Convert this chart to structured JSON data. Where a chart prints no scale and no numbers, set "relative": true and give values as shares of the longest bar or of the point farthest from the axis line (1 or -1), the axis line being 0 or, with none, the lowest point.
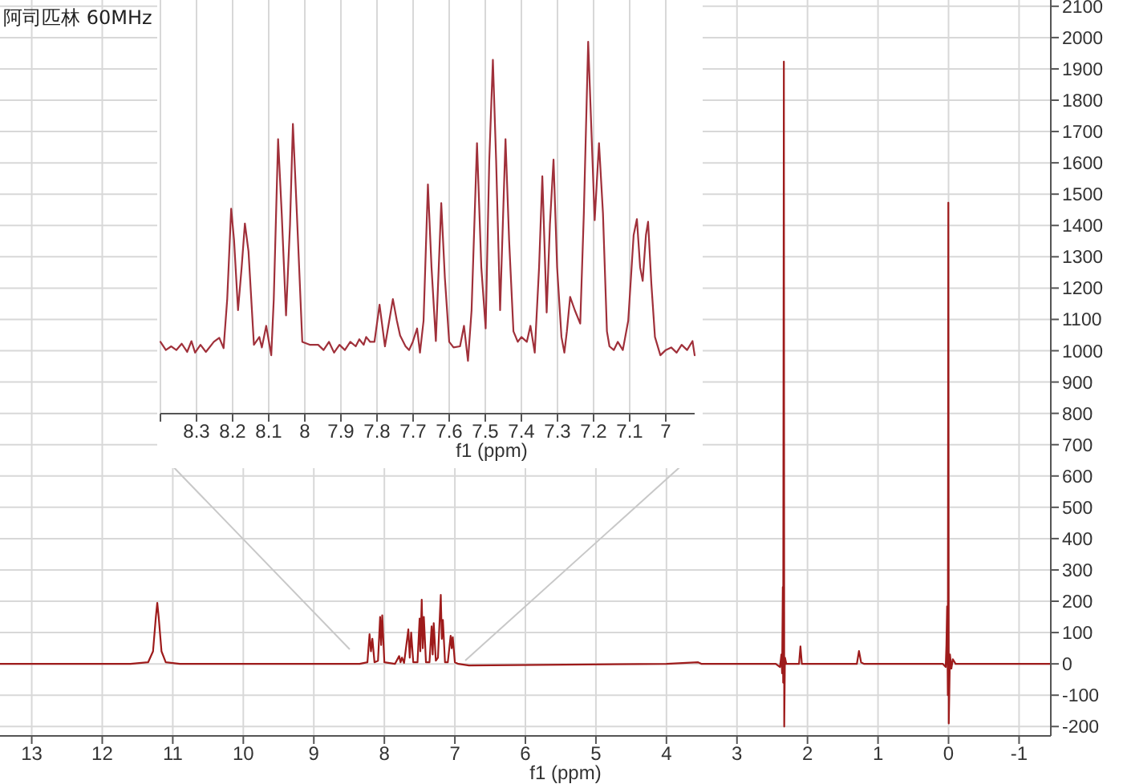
{
  "chart_data": [
    {
      "type": "line",
      "title": "阿司匹林 60MHz",
      "xlabel": "f1 (ppm)",
      "xlim": [
        13.45,
        -1.45
      ],
      "xticks": [
        13,
        12,
        11,
        10,
        9,
        8,
        7,
        6,
        5,
        4,
        3,
        2,
        1,
        0,
        -1
      ],
      "ylim": [
        -230,
        2120
      ],
      "yticks": [
        -200,
        -100,
        0,
        100,
        200,
        300,
        400,
        500,
        600,
        700,
        800,
        900,
        1000,
        1100,
        1200,
        1300,
        1400,
        1500,
        1600,
        1700,
        1800,
        1900,
        2000,
        2100
      ],
      "grid": true,
      "marker": "none",
      "line_style": "solid",
      "series": [
        {
          "color": "#9e1b1b",
          "x": [
            13.45,
            11.6,
            11.35,
            11.28,
            11.24,
            11.22,
            11.2,
            11.16,
            11.1,
            10.9,
            8.35,
            8.24,
            8.21,
            8.19,
            8.17,
            8.14,
            8.09,
            8.06,
            8.045,
            8.03,
            8.0,
            7.85,
            7.79,
            7.77,
            7.75,
            7.72,
            7.66,
            7.64,
            7.62,
            7.59,
            7.53,
            7.5,
            7.49,
            7.47,
            7.455,
            7.44,
            7.41,
            7.36,
            7.33,
            7.315,
            7.3,
            7.27,
            7.24,
            7.2,
            7.185,
            7.17,
            7.14,
            7.1,
            7.06,
            7.045,
            7.03,
            7.0,
            6.95,
            6.8,
            4,
            3.55,
            3.5,
            2.45,
            2.39,
            2.37,
            2.36,
            2.35,
            2.345,
            2.335,
            2.33,
            2.32,
            2.3,
            2.12,
            2.1,
            2.08,
            1.3,
            1.27,
            1.24,
            1.2,
            0.08,
            0.04,
            0.03,
            0.02,
            0.01,
            0.003,
            -0.003,
            -0.02,
            -0.04,
            -0.06,
            -0.1,
            -1.45
          ],
          "values": [
            0,
            0,
            5,
            40,
            150,
            195,
            150,
            40,
            5,
            0,
            0,
            5,
            95,
            40,
            80,
            5,
            10,
            150,
            60,
            155,
            5,
            0,
            25,
            5,
            20,
            3,
            110,
            20,
            100,
            5,
            5,
            145,
            40,
            205,
            50,
            150,
            5,
            5,
            120,
            30,
            130,
            10,
            20,
            220,
            80,
            140,
            5,
            5,
            90,
            50,
            85,
            5,
            0,
            -5,
            0,
            5,
            0,
            0,
            -10,
            30,
            -30,
            245,
            -60,
            1923,
            -200,
            20,
            0,
            0,
            56,
            0,
            0,
            41,
            5,
            0,
            0,
            -10,
            60,
            184,
            -100,
            1473,
            -190,
            30,
            -15,
            15,
            0,
            0
          ]
        }
      ]
    },
    {
      "type": "line",
      "xlabel": "f1 (ppm)",
      "xlim": [
        8.4,
        6.92
      ],
      "xticks": [
        {
          "value": 8.4,
          "label": null
        },
        8.3,
        8.2,
        8.1,
        8.0,
        7.9,
        7.8,
        7.7,
        7.6,
        7.5,
        7.4,
        7.3,
        7.2,
        7.1,
        7.0
      ],
      "relative": true,
      "grid": "x",
      "marker": "none",
      "line_style": "solid",
      "series": [
        {
          "color": "#a0303a",
          "x": [
            8.4,
            8.385,
            8.37,
            8.356,
            8.341,
            8.326,
            8.314,
            8.304,
            8.289,
            8.274,
            8.252,
            8.237,
            8.225,
            8.215,
            8.204,
            8.196,
            8.185,
            8.175,
            8.166,
            8.156,
            8.141,
            8.126,
            8.119,
            8.107,
            8.093,
            8.086,
            8.074,
            8.064,
            8.052,
            8.041,
            8.033,
            8.022,
            8.007,
            7.985,
            7.963,
            7.948,
            7.933,
            7.919,
            7.904,
            7.889,
            7.874,
            7.859,
            7.849,
            7.837,
            7.83,
            7.819,
            7.807,
            7.793,
            7.778,
            7.756,
            7.745,
            7.736,
            7.721,
            7.711,
            7.701,
            7.689,
            7.681,
            7.671,
            7.659,
            7.649,
            7.637,
            7.622,
            7.612,
            7.6,
            7.588,
            7.57,
            7.559,
            7.548,
            7.538,
            7.523,
            7.511,
            7.499,
            7.489,
            7.479,
            7.47,
            7.459,
            7.444,
            7.434,
            7.422,
            7.41,
            7.4,
            7.385,
            7.375,
            7.363,
            7.351,
            7.342,
            7.33,
            7.321,
            7.311,
            7.301,
            7.289,
            7.281,
            7.274,
            7.265,
            7.252,
            7.237,
            7.227,
            7.215,
            7.203,
            7.197,
            7.185,
            7.174,
            7.163,
            7.156,
            7.144,
            7.133,
            7.119,
            7.104,
            7.089,
            7.08,
            7.071,
            7.064,
            7.055,
            7.049,
            7.04,
            7.03,
            7.015,
            7.0,
            6.985,
            6.97,
            6.956,
            6.941,
            6.926,
            6.92
          ],
          "values": [
            0.193,
            0.171,
            0.181,
            0.171,
            0.188,
            0.166,
            0.195,
            0.164,
            0.185,
            0.166,
            0.193,
            0.204,
            0.176,
            0.308,
            0.551,
            0.466,
            0.278,
            0.393,
            0.511,
            0.436,
            0.185,
            0.206,
            0.178,
            0.236,
            0.157,
            0.308,
            0.738,
            0.538,
            0.264,
            0.508,
            0.779,
            0.538,
            0.193,
            0.185,
            0.185,
            0.171,
            0.193,
            0.164,
            0.185,
            0.171,
            0.193,
            0.181,
            0.2,
            0.185,
            0.206,
            0.193,
            0.193,
            0.293,
            0.181,
            0.308,
            0.25,
            0.21,
            0.181,
            0.171,
            0.193,
            0.229,
            0.164,
            0.25,
            0.616,
            0.393,
            0.195,
            0.566,
            0.365,
            0.193,
            0.178,
            0.181,
            0.236,
            0.142,
            0.278,
            0.727,
            0.393,
            0.229,
            0.681,
            0.951,
            0.681,
            0.278,
            0.738,
            0.466,
            0.221,
            0.193,
            0.206,
            0.193,
            0.236,
            0.164,
            0.393,
            0.638,
            0.272,
            0.508,
            0.683,
            0.393,
            0.206,
            0.164,
            0.221,
            0.314,
            0.278,
            0.242,
            0.538,
            1.0,
            0.681,
            0.52,
            0.727,
            0.538,
            0.221,
            0.181,
            0.171,
            0.193,
            0.171,
            0.25,
            0.48,
            0.523,
            0.393,
            0.357,
            0.48,
            0.516,
            0.35,
            0.206,
            0.157,
            0.171,
            0.178,
            0.164,
            0.185,
            0.171,
            0.195,
            0.157
          ]
        }
      ]
    }
  ]
}
